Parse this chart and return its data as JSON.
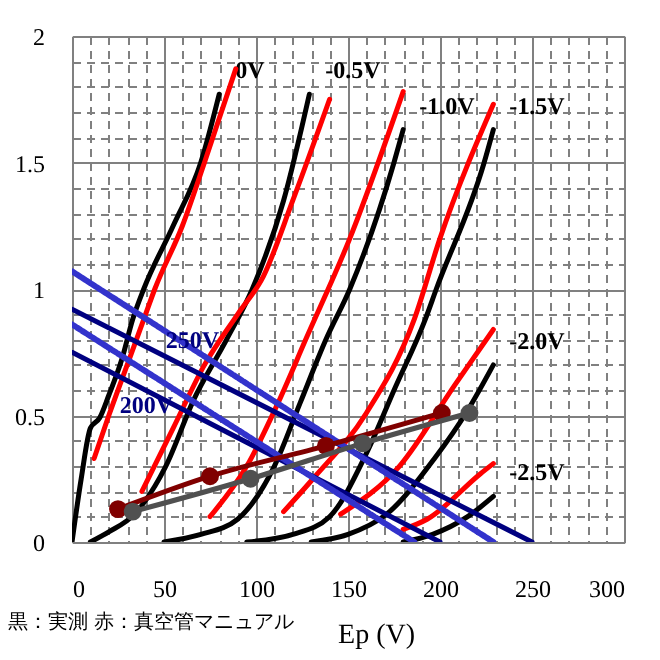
{
  "chart_data": {
    "type": "line",
    "xlabel": "Ep (V)",
    "xlim": [
      0,
      300
    ],
    "ylim": [
      0,
      2
    ],
    "xticks": [
      0,
      {
        "value": 10,
        "label": null
      },
      {
        "value": 20,
        "label": null
      },
      {
        "value": 30,
        "label": null
      },
      {
        "value": 40,
        "label": null
      },
      50,
      {
        "value": 60,
        "label": null
      },
      {
        "value": 70,
        "label": null
      },
      {
        "value": 80,
        "label": null
      },
      {
        "value": 90,
        "label": null
      },
      100,
      {
        "value": 110,
        "label": null
      },
      {
        "value": 120,
        "label": null
      },
      {
        "value": 130,
        "label": null
      },
      {
        "value": 140,
        "label": null
      },
      150,
      {
        "value": 160,
        "label": null
      },
      {
        "value": 170,
        "label": null
      },
      {
        "value": 180,
        "label": null
      },
      {
        "value": 190,
        "label": null
      },
      200,
      {
        "value": 210,
        "label": null
      },
      {
        "value": 220,
        "label": null
      },
      {
        "value": 230,
        "label": null
      },
      {
        "value": 240,
        "label": null
      },
      250,
      {
        "value": 260,
        "label": null
      },
      {
        "value": 270,
        "label": null
      },
      {
        "value": 280,
        "label": null
      },
      {
        "value": 290,
        "label": null
      },
      300
    ],
    "yticks": [
      0,
      {
        "value": 0.1,
        "label": null
      },
      {
        "value": 0.2,
        "label": null
      },
      {
        "value": 0.3,
        "label": null
      },
      {
        "value": 0.4,
        "label": null
      },
      0.5,
      {
        "value": 0.6,
        "label": null
      },
      {
        "value": 0.7,
        "label": null
      },
      {
        "value": 0.8,
        "label": null
      },
      {
        "value": 0.9,
        "label": null
      },
      1,
      {
        "value": 1.1,
        "label": null
      },
      {
        "value": 1.2,
        "label": null
      },
      {
        "value": 1.3,
        "label": null
      },
      {
        "value": 1.4,
        "label": null
      },
      1.5,
      {
        "value": 1.6,
        "label": null
      },
      {
        "value": 1.7,
        "label": null
      },
      {
        "value": 1.8,
        "label": null
      },
      {
        "value": 1.9,
        "label": null
      },
      2
    ],
    "grid": true,
    "legend": false,
    "series": [
      {
        "name": "0V",
        "color": "#000000",
        "x": [
          0,
          5,
          10,
          15,
          20,
          27,
          33,
          39,
          55,
          70,
          80
        ],
        "values": [
          0,
          0.25,
          0.45,
          0.49,
          0.58,
          0.72,
          0.88,
          1.0,
          1.25,
          1.5,
          1.77
        ]
      },
      {
        "name": "-0.5V",
        "color": "#000000",
        "x": [
          10,
          20,
          34,
          45,
          51,
          66,
          84,
          98,
          115,
          129
        ],
        "values": [
          0,
          0.04,
          0.11,
          0.22,
          0.3,
          0.56,
          0.8,
          1.0,
          1.35,
          1.77
        ]
      },
      {
        "name": "-1.0V",
        "color": "#000000",
        "x": [
          50,
          70,
          90,
          110,
          124,
          138,
          151,
          175,
          180
        ],
        "values": [
          0,
          0.03,
          0.09,
          0.3,
          0.55,
          0.8,
          1.0,
          1.5,
          1.63
        ]
      },
      {
        "name": "-1.5V",
        "color": "#000000",
        "x": [
          95,
          120,
          140,
          160,
          175,
          192,
          198,
          224,
          229
        ],
        "values": [
          0,
          0.03,
          0.1,
          0.35,
          0.6,
          0.88,
          1.0,
          1.5,
          1.63
        ]
      },
      {
        "name": "-2.0V",
        "color": "#000000",
        "x": [
          130,
          150,
          171,
          197,
          215,
          229
        ],
        "values": [
          0,
          0.03,
          0.11,
          0.33,
          0.52,
          0.7
        ]
      },
      {
        "name": "-2.5V",
        "color": "#000000",
        "x": [
          180,
          196,
          215,
          229
        ],
        "values": [
          0,
          0.03,
          0.1,
          0.18
        ]
      },
      {
        "color": "#ff0000",
        "x": [
          12,
          20,
          30,
          39,
          45,
          60,
          72,
          89
        ],
        "values": [
          0.33,
          0.5,
          0.7,
          0.88,
          1.0,
          1.25,
          1.5,
          1.87
        ]
      },
      {
        "color": "#ff0000",
        "x": [
          38,
          55,
          72,
          90,
          104,
          120,
          140
        ],
        "values": [
          0.2,
          0.45,
          0.7,
          0.9,
          1.05,
          1.35,
          1.75
        ]
      },
      {
        "color": "#ff0000",
        "x": [
          75,
          95,
          112,
          127,
          151,
          180
        ],
        "values": [
          0.1,
          0.3,
          0.55,
          0.8,
          1.2,
          1.78
        ]
      },
      {
        "color": "#ff0000",
        "x": [
          115,
          131,
          160,
          186,
          200,
          229
        ],
        "values": [
          0.12,
          0.25,
          0.51,
          0.88,
          1.2,
          1.73
        ]
      },
      {
        "color": "#ff0000",
        "x": [
          146,
          178,
          208,
          229
        ],
        "values": [
          0.11,
          0.3,
          0.62,
          0.84
        ]
      },
      {
        "color": "#ff0000",
        "x": [
          180,
          193,
          222,
          229
        ],
        "values": [
          0.05,
          0.09,
          0.27,
          0.31
        ]
      },
      {
        "color": "#000080",
        "x": [
          0,
          250
        ],
        "values": [
          0.92,
          0
        ]
      },
      {
        "color": "#000080",
        "x": [
          0,
          200
        ],
        "values": [
          0.75,
          0
        ]
      },
      {
        "color": "#3333cc",
        "line_style": "dotted",
        "x": [
          0,
          229
        ],
        "values": [
          1.07,
          0
        ]
      },
      {
        "color": "#3333cc",
        "line_style": "dotted",
        "x": [
          0,
          186
        ],
        "values": [
          0.86,
          0
        ]
      },
      {
        "color": "#800000",
        "marker": "circle",
        "x": [
          25,
          75,
          138,
          201
        ],
        "values": [
          0.13,
          0.26,
          0.38,
          0.51
        ]
      },
      {
        "color": "#505050",
        "marker": "circle",
        "x": [
          33,
          97,
          158,
          216
        ],
        "values": [
          0.12,
          0.25,
          0.39,
          0.51
        ]
      }
    ],
    "annotations": [
      {
        "text": "250V",
        "x": 51,
        "y": 0.8
      },
      {
        "text": "200V",
        "x": 26,
        "y": 0.54
      },
      "黒：実測 赤：真空管マニュアル"
    ]
  }
}
